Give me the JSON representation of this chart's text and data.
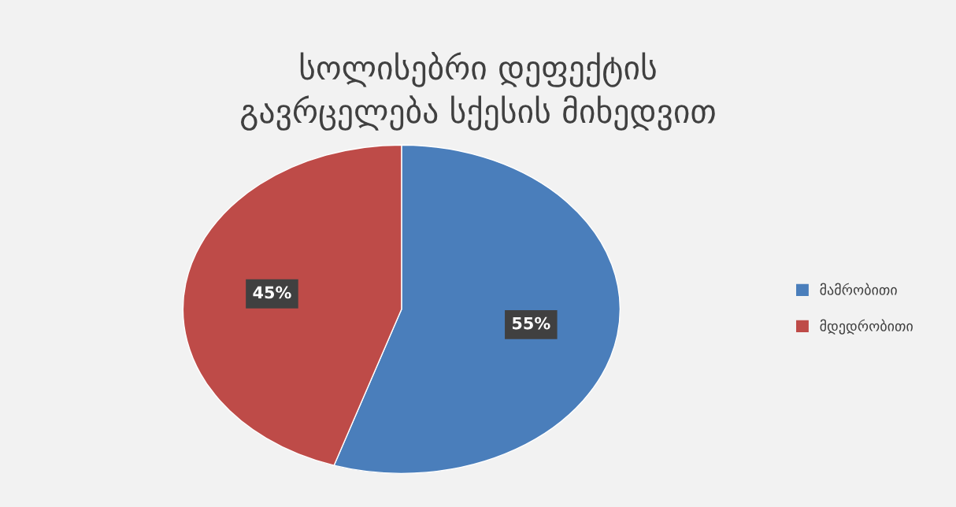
{
  "chart_data": {
    "type": "pie",
    "title": "სოლისებრი დეფექტის\nგავრცელება სქესის მიხედვით",
    "categories": [
      "მამრობითი",
      "მდედრობითი"
    ],
    "values": [
      55,
      45
    ],
    "colors": [
      "#4a7ebb",
      "#be4b48"
    ],
    "value_labels": [
      "55%",
      "45%"
    ],
    "legend": "right"
  }
}
